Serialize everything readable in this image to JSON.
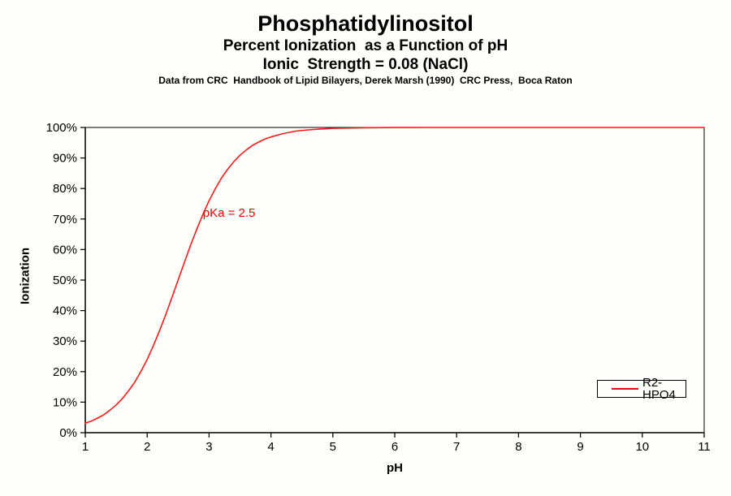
{
  "header": {
    "title": "Phosphatidylinositol",
    "subtitle1": "Percent Ionization  as a Function of pH",
    "subtitle2": "Ionic  Strength = 0.08 (NaCl)",
    "source_note": "Data from CRC  Handbook of Lipid Bilayers, Derek Marsh (1990)  CRC Press,  Boca Raton"
  },
  "chart_data": {
    "type": "line",
    "title": "Phosphatidylinositol - Percent Ionization as a Function of pH",
    "xlabel": "pH",
    "ylabel": "Ionization",
    "xlim": [
      1,
      11
    ],
    "ylim_percent": [
      0,
      100
    ],
    "grid": false,
    "background": "#FCFEF9",
    "axis_color": "#000000",
    "x_ticks": [
      1,
      2,
      3,
      4,
      5,
      6,
      7,
      8,
      9,
      10,
      11
    ],
    "y_ticks": [
      {
        "value": 0,
        "label": "0%"
      },
      {
        "value": 10,
        "label": "10%"
      },
      {
        "value": 20,
        "label": "20%"
      },
      {
        "value": 30,
        "label": "30%"
      },
      {
        "value": 40,
        "label": "40%"
      },
      {
        "value": 50,
        "label": "50%"
      },
      {
        "value": 60,
        "label": "60%"
      },
      {
        "value": 70,
        "label": "70%"
      },
      {
        "value": 80,
        "label": "80%"
      },
      {
        "value": 90,
        "label": "90%"
      },
      {
        "value": 100,
        "label": "100%"
      }
    ],
    "annotation": {
      "text": "pKa = 2.5",
      "x_ph": 2.9,
      "y_percent": 71.5,
      "color": "#FF0000"
    },
    "legend": {
      "position": "inside-bottom-right",
      "border_color": "#000000"
    },
    "series": [
      {
        "name": "R2-HPO4",
        "color": "#FF1A1A",
        "pKa": 2.5,
        "model": "percent_ionized = 100 / (1 + 10^(pKa - pH))",
        "points": [
          [
            1.0,
            3.1
          ],
          [
            1.1,
            3.8
          ],
          [
            1.2,
            4.8
          ],
          [
            1.3,
            5.9
          ],
          [
            1.4,
            7.4
          ],
          [
            1.5,
            9.1
          ],
          [
            1.6,
            11.2
          ],
          [
            1.7,
            13.7
          ],
          [
            1.8,
            16.6
          ],
          [
            1.9,
            20.1
          ],
          [
            2.0,
            24.0
          ],
          [
            2.1,
            28.5
          ],
          [
            2.2,
            33.4
          ],
          [
            2.3,
            38.7
          ],
          [
            2.4,
            44.3
          ],
          [
            2.5,
            50.0
          ],
          [
            2.6,
            55.7
          ],
          [
            2.7,
            61.3
          ],
          [
            2.8,
            66.6
          ],
          [
            2.9,
            71.5
          ],
          [
            3.0,
            76.0
          ],
          [
            3.1,
            79.9
          ],
          [
            3.2,
            83.4
          ],
          [
            3.3,
            86.3
          ],
          [
            3.4,
            88.8
          ],
          [
            3.5,
            90.9
          ],
          [
            3.6,
            92.6
          ],
          [
            3.7,
            94.1
          ],
          [
            3.8,
            95.2
          ],
          [
            3.9,
            96.2
          ],
          [
            4.0,
            96.9
          ],
          [
            4.2,
            98.0
          ],
          [
            4.4,
            98.8
          ],
          [
            4.6,
            99.2
          ],
          [
            4.8,
            99.5
          ],
          [
            5.0,
            99.7
          ],
          [
            5.5,
            99.9
          ],
          [
            6.0,
            99.97
          ],
          [
            6.5,
            99.99
          ],
          [
            7.0,
            100
          ],
          [
            8.0,
            100
          ],
          [
            9.0,
            100
          ],
          [
            10.0,
            100
          ],
          [
            11.0,
            100
          ]
        ]
      }
    ]
  }
}
